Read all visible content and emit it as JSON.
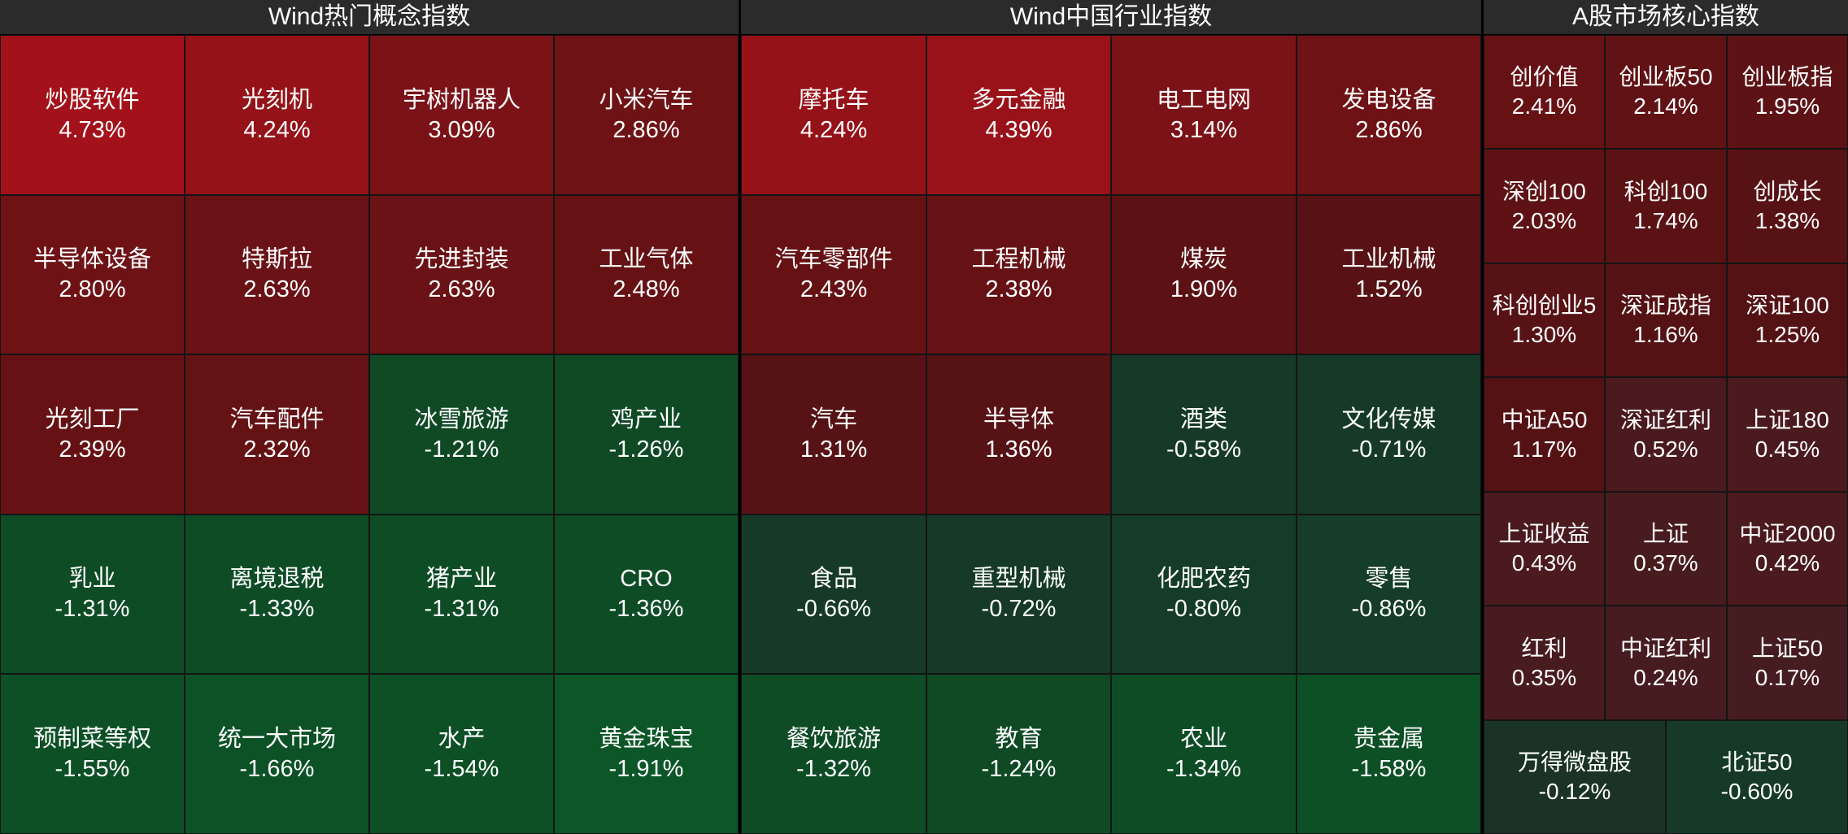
{
  "colors": {
    "background": "#000000",
    "header_bg": "#2b2b2b",
    "text": "#ffffff"
  },
  "panels": [
    {
      "title": "Wind热门概念指数",
      "rows": [
        [
          {
            "name": "炒股软件",
            "pct": "4.73%",
            "color": "#a3121a"
          },
          {
            "name": "光刻机",
            "pct": "4.24%",
            "color": "#951218"
          },
          {
            "name": "宇树机器人",
            "pct": "3.09%",
            "color": "#7a1217"
          },
          {
            "name": "小米汽车",
            "pct": "2.86%",
            "color": "#6e1216"
          }
        ],
        [
          {
            "name": "半导体设备",
            "pct": "2.80%",
            "color": "#6e1216"
          },
          {
            "name": "特斯拉",
            "pct": "2.63%",
            "color": "#6a1216"
          },
          {
            "name": "先进封装",
            "pct": "2.63%",
            "color": "#6a1216"
          },
          {
            "name": "工业气体",
            "pct": "2.48%",
            "color": "#661215"
          }
        ],
        [
          {
            "name": "光刻工厂",
            "pct": "2.39%",
            "color": "#661215"
          },
          {
            "name": "汽车配件",
            "pct": "2.32%",
            "color": "#651215"
          },
          {
            "name": "冰雪旅游",
            "pct": "-1.21%",
            "color": "#0f4a25"
          },
          {
            "name": "鸡产业",
            "pct": "-1.26%",
            "color": "#0f4a25"
          }
        ],
        [
          {
            "name": "乳业",
            "pct": "-1.31%",
            "color": "#0e4c26"
          },
          {
            "name": "离境退税",
            "pct": "-1.33%",
            "color": "#0e4c26"
          },
          {
            "name": "猪产业",
            "pct": "-1.31%",
            "color": "#0e4c26"
          },
          {
            "name": "CRO",
            "pct": "-1.36%",
            "color": "#0e4c26"
          }
        ],
        [
          {
            "name": "预制菜等权",
            "pct": "-1.55%",
            "color": "#0d5026"
          },
          {
            "name": "统一大市场",
            "pct": "-1.66%",
            "color": "#0d5227"
          },
          {
            "name": "水产",
            "pct": "-1.54%",
            "color": "#0d5026"
          },
          {
            "name": "黄金珠宝",
            "pct": "-1.91%",
            "color": "#0c5628"
          }
        ]
      ]
    },
    {
      "title": "Wind中国行业指数",
      "rows": [
        [
          {
            "name": "摩托车",
            "pct": "4.24%",
            "color": "#951218"
          },
          {
            "name": "多元金融",
            "pct": "4.39%",
            "color": "#9a1219"
          },
          {
            "name": "电工电网",
            "pct": "3.14%",
            "color": "#7b1217"
          },
          {
            "name": "发电设备",
            "pct": "2.86%",
            "color": "#6e1216"
          }
        ],
        [
          {
            "name": "汽车零部件",
            "pct": "2.43%",
            "color": "#661215"
          },
          {
            "name": "工程机械",
            "pct": "2.38%",
            "color": "#661215"
          },
          {
            "name": "煤炭",
            "pct": "1.90%",
            "color": "#5c1215"
          },
          {
            "name": "工业机械",
            "pct": "1.52%",
            "color": "#581215"
          }
        ],
        [
          {
            "name": "汽车",
            "pct": "1.31%",
            "color": "#561215"
          },
          {
            "name": "半导体",
            "pct": "1.36%",
            "color": "#571215"
          },
          {
            "name": "酒类",
            "pct": "-0.58%",
            "color": "#163a27"
          },
          {
            "name": "文化传媒",
            "pct": "-0.71%",
            "color": "#163a27"
          }
        ],
        [
          {
            "name": "食品",
            "pct": "-0.66%",
            "color": "#163a27"
          },
          {
            "name": "重型机械",
            "pct": "-0.72%",
            "color": "#163a27"
          },
          {
            "name": "化肥农药",
            "pct": "-0.80%",
            "color": "#153c27"
          },
          {
            "name": "零售",
            "pct": "-0.86%",
            "color": "#153d27"
          }
        ],
        [
          {
            "name": "餐饮旅游",
            "pct": "-1.32%",
            "color": "#0e4c26"
          },
          {
            "name": "教育",
            "pct": "-1.24%",
            "color": "#0f4a25"
          },
          {
            "name": "农业",
            "pct": "-1.34%",
            "color": "#0e4c26"
          },
          {
            "name": "贵金属",
            "pct": "-1.58%",
            "color": "#0d5026"
          }
        ]
      ]
    },
    {
      "title": "A股市场核心指数",
      "rows": [
        [
          {
            "name": "创价值",
            "pct": "2.41%",
            "color": "#661215"
          },
          {
            "name": "创业板50",
            "pct": "2.14%",
            "color": "#601215"
          },
          {
            "name": "创业板指",
            "pct": "1.95%",
            "color": "#5d1215"
          }
        ],
        [
          {
            "name": "深创100",
            "pct": "2.03%",
            "color": "#5e1215"
          },
          {
            "name": "科创100",
            "pct": "1.74%",
            "color": "#5a1215"
          },
          {
            "name": "创成长",
            "pct": "1.38%",
            "color": "#571215"
          }
        ],
        [
          {
            "name": "科创创业5",
            "pct": "1.30%",
            "color": "#561215"
          },
          {
            "name": "深证成指",
            "pct": "1.16%",
            "color": "#541215"
          },
          {
            "name": "深证100",
            "pct": "1.25%",
            "color": "#551215"
          }
        ],
        [
          {
            "name": "中证A50",
            "pct": "1.17%",
            "color": "#541215"
          },
          {
            "name": "深证红利",
            "pct": "0.52%",
            "color": "#4a1a1e"
          },
          {
            "name": "上证180",
            "pct": "0.45%",
            "color": "#4a1a1e"
          }
        ],
        [
          {
            "name": "上证收益",
            "pct": "0.43%",
            "color": "#4a1a1e"
          },
          {
            "name": "上证",
            "pct": "0.37%",
            "color": "#481b1f"
          },
          {
            "name": "中证2000",
            "pct": "0.42%",
            "color": "#4a1a1e"
          }
        ],
        [
          {
            "name": "红利",
            "pct": "0.35%",
            "color": "#481b1f"
          },
          {
            "name": "中证红利",
            "pct": "0.24%",
            "color": "#461c20"
          },
          {
            "name": "上证50",
            "pct": "0.17%",
            "color": "#451d21"
          }
        ],
        [
          {
            "name": "万得微盘股",
            "pct": "-0.12%",
            "color": "#1b3327"
          },
          {
            "name": "北证50",
            "pct": "-0.60%",
            "color": "#163a27"
          }
        ]
      ]
    }
  ]
}
